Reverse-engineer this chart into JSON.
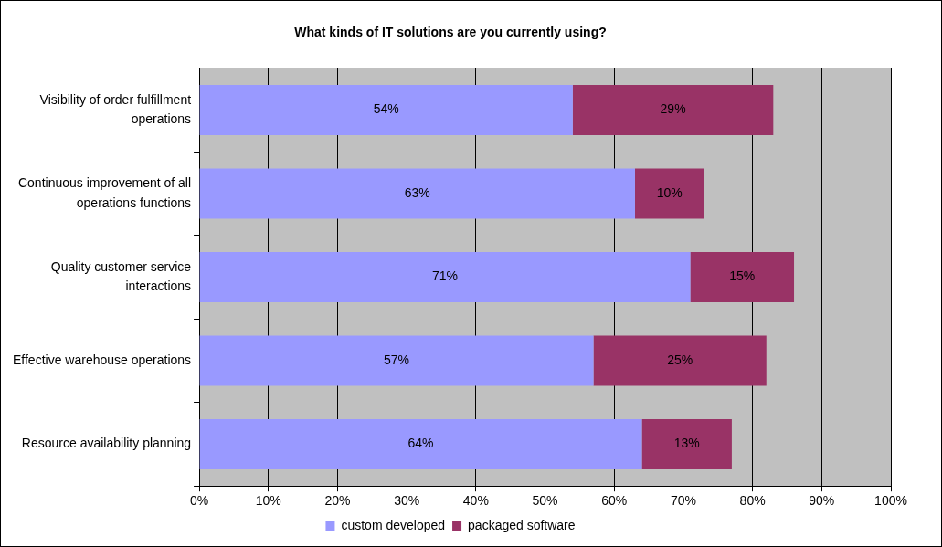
{
  "chart_data": {
    "type": "bar",
    "orientation": "horizontal",
    "stacked": true,
    "title": "What kinds of IT solutions are you currently using?",
    "categories": [
      "Visibility of order fulfillment operations",
      "Continuous improvement of all operations functions",
      "Quality customer service interactions",
      "Effective warehouse operations",
      "Resource availability planning"
    ],
    "series": [
      {
        "name": "custom developed",
        "color": "#9999ff",
        "values": [
          54,
          63,
          71,
          57,
          64
        ],
        "value_labels": [
          "54%",
          "63%",
          "71%",
          "57%",
          "64%"
        ]
      },
      {
        "name": "packaged software",
        "color": "#993366",
        "values": [
          29,
          10,
          15,
          25,
          13
        ],
        "value_labels": [
          "29%",
          "10%",
          "15%",
          "25%",
          "13%"
        ]
      }
    ],
    "xlim": [
      0,
      100
    ],
    "xticks": [
      {
        "value": 0,
        "label": "0%"
      },
      {
        "value": 10,
        "label": "10%"
      },
      {
        "value": 20,
        "label": "20%"
      },
      {
        "value": 30,
        "label": "30%"
      },
      {
        "value": 40,
        "label": "40%"
      },
      {
        "value": 50,
        "label": "50%"
      },
      {
        "value": 60,
        "label": "60%"
      },
      {
        "value": 70,
        "label": "70%"
      },
      {
        "value": 80,
        "label": "80%"
      },
      {
        "value": 90,
        "label": "90%"
      },
      {
        "value": 100,
        "label": "100%"
      }
    ],
    "grid": "x",
    "legend": "bottom"
  }
}
